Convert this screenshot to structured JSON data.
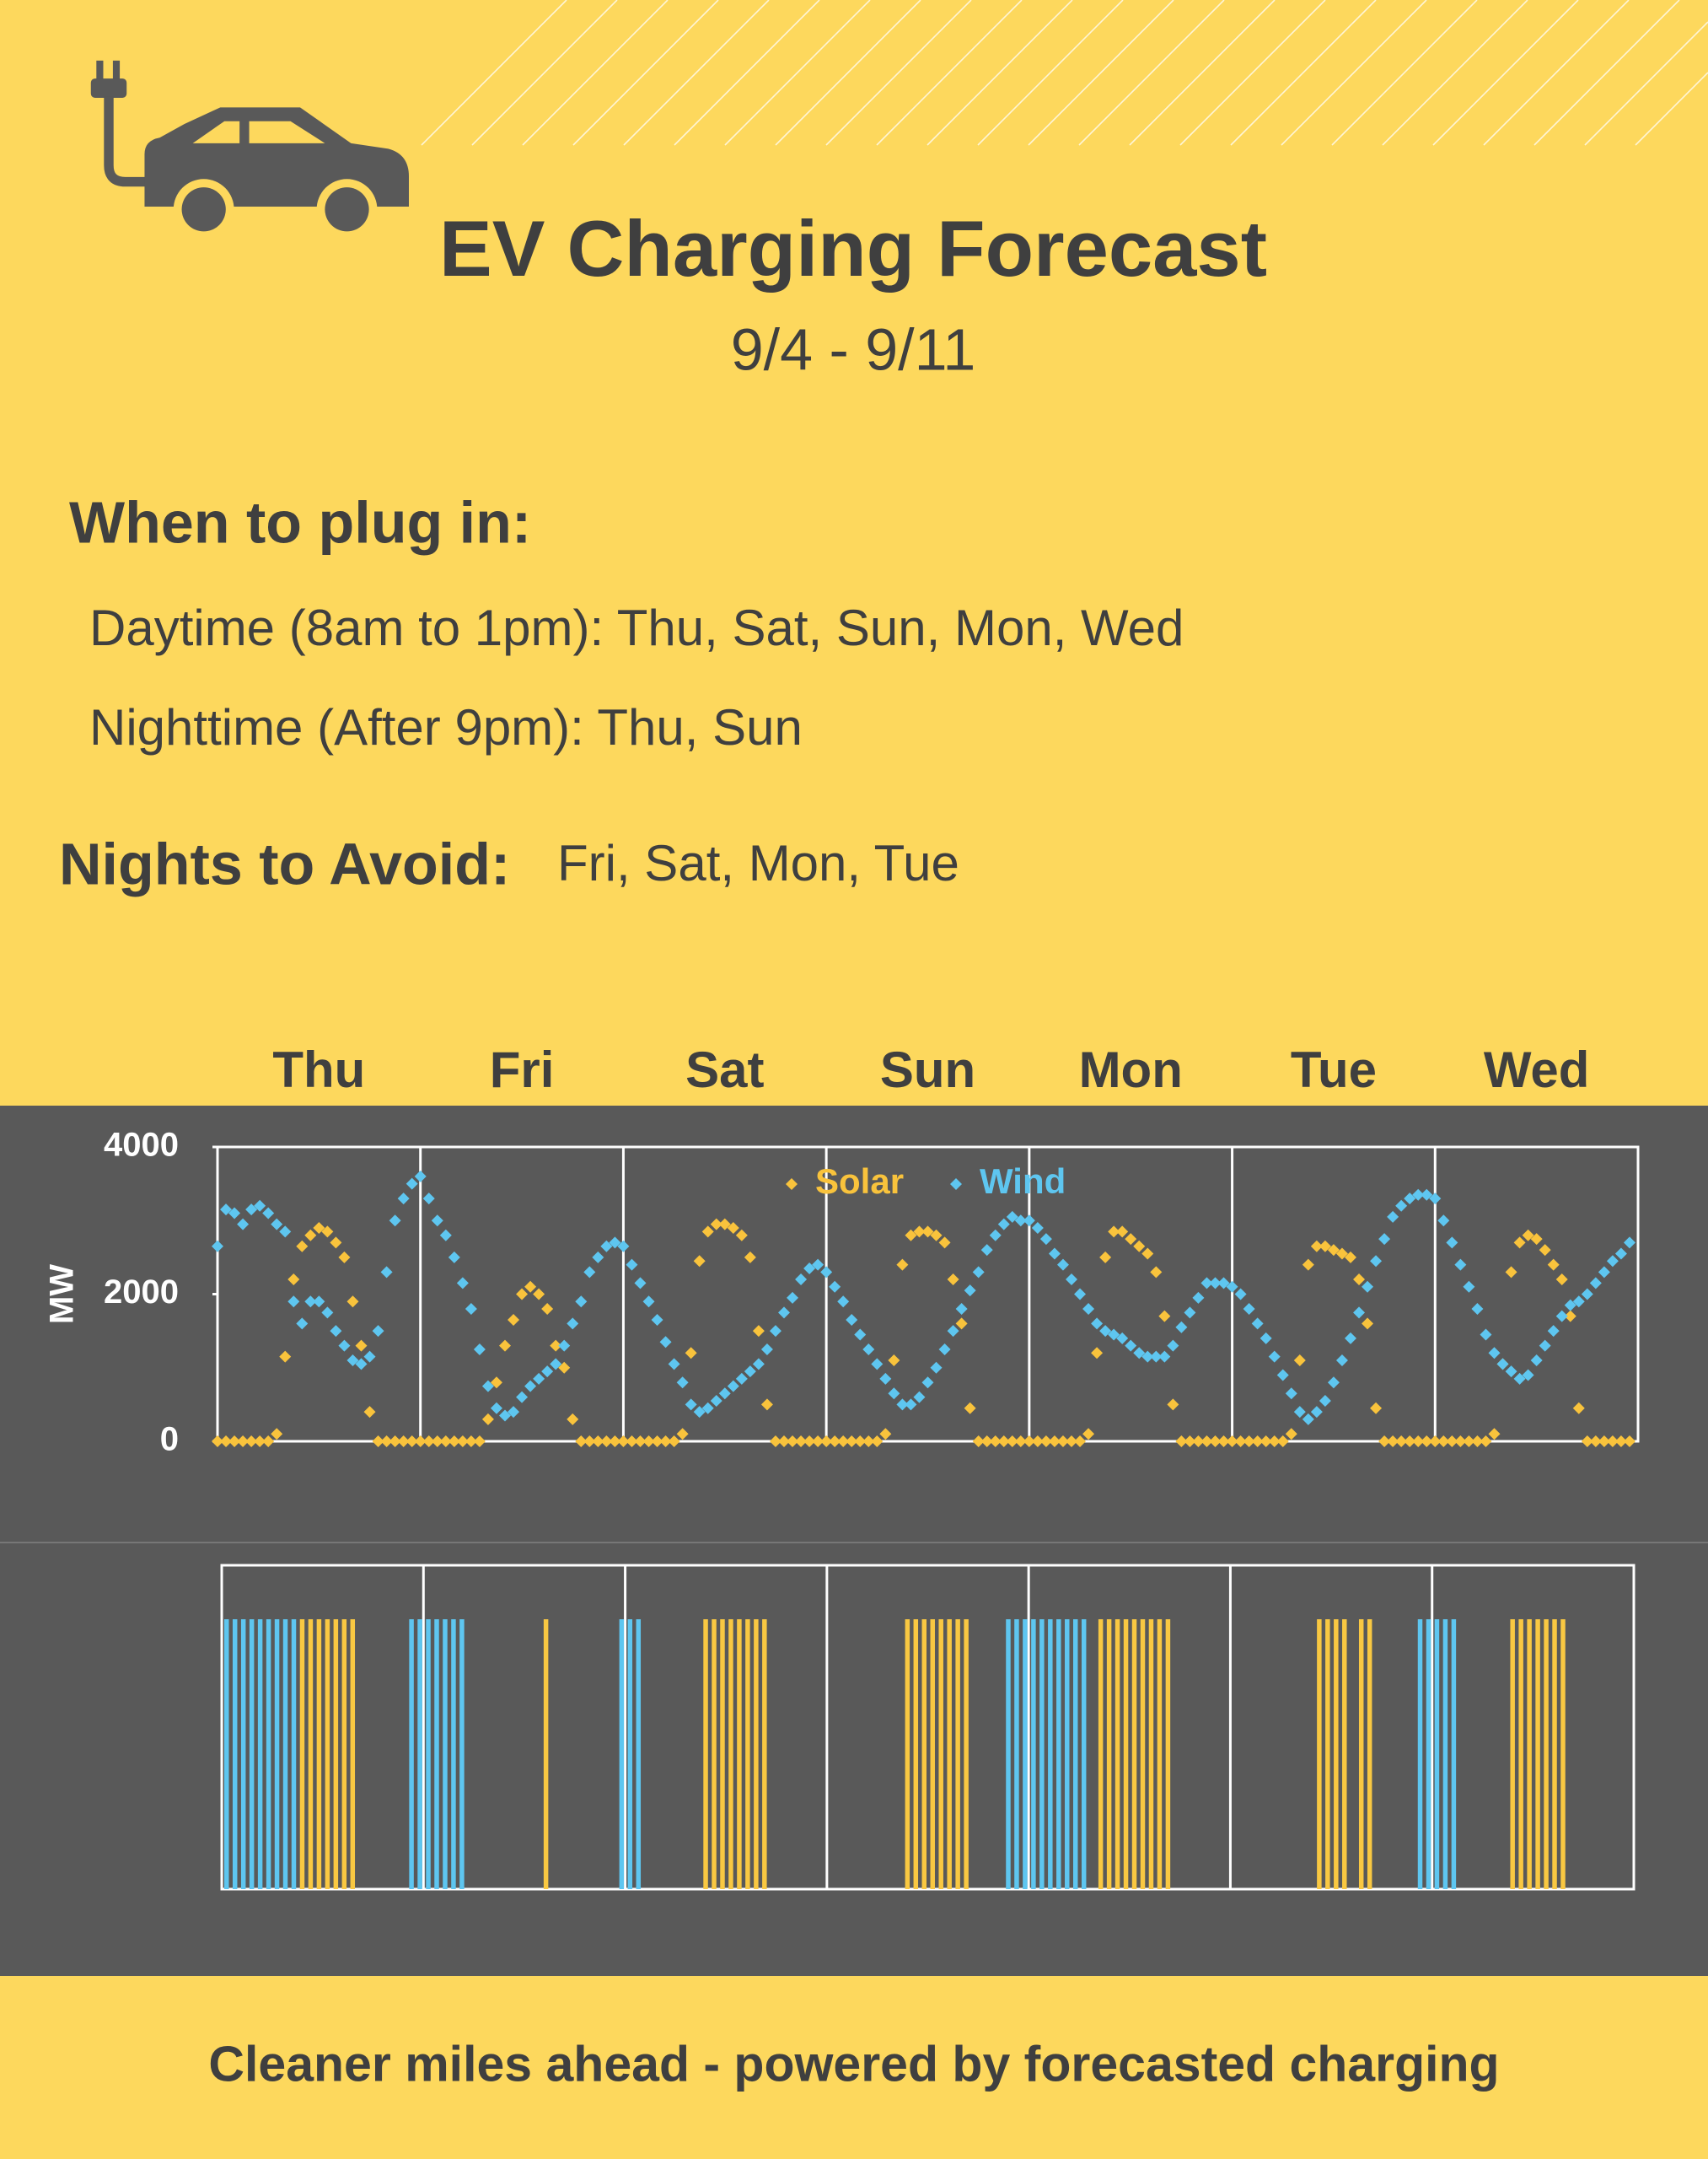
{
  "header": {
    "title": "EV Charging Forecast",
    "date_range": "9/4 - 9/11"
  },
  "plug_in": {
    "heading": "When to plug in:",
    "daytime": "Daytime (8am to 1pm): Thu, Sat, Sun, Mon, Wed",
    "nighttime": "Nighttime  (After 9pm): Thu, Sun"
  },
  "avoid": {
    "heading": "Nights to Avoid:",
    "days": "Fri, Sat, Mon, Tue"
  },
  "chart_data": [
    {
      "type": "scatter",
      "categories": [
        "Thu",
        "Fri",
        "Sat",
        "Sun",
        "Mon",
        "Tue",
        "Wed"
      ],
      "y_label": "MW",
      "ylim": [
        0,
        4000
      ],
      "yticks": [
        0,
        2000,
        4000
      ],
      "grid": false,
      "legend": "top",
      "series": [
        {
          "name": "Solar",
          "color": "#f9c33c",
          "values": [
            [
              0,
              0,
              0,
              0,
              0,
              0,
              0,
              100,
              1150,
              2200,
              2650,
              2800,
              2900,
              2850,
              2700,
              2500,
              1900,
              1300,
              400,
              0,
              0,
              0,
              0,
              0
            ],
            [
              0,
              0,
              0,
              0,
              0,
              0,
              0,
              0,
              300,
              800,
              1300,
              1650,
              2000,
              2100,
              2000,
              1800,
              1300,
              1000,
              300,
              0,
              0,
              0,
              0,
              0
            ],
            [
              0,
              0,
              0,
              0,
              0,
              0,
              0,
              100,
              1200,
              2450,
              2850,
              2950,
              2950,
              2900,
              2800,
              2500,
              1500,
              500,
              0,
              0,
              0,
              0,
              0,
              0
            ],
            [
              0,
              0,
              0,
              0,
              0,
              0,
              0,
              100,
              1100,
              2400,
              2800,
              2850,
              2850,
              2800,
              2700,
              2200,
              1600,
              450,
              0,
              0,
              0,
              0,
              0,
              0
            ],
            [
              0,
              0,
              0,
              0,
              0,
              0,
              0,
              100,
              1200,
              2500,
              2850,
              2850,
              2750,
              2650,
              2550,
              2300,
              1700,
              500,
              0,
              0,
              0,
              0,
              0,
              0
            ],
            [
              0,
              0,
              0,
              0,
              0,
              0,
              0,
              100,
              1100,
              2400,
              2650,
              2650,
              2600,
              2550,
              2500,
              2200,
              1600,
              450,
              0,
              0,
              0,
              0,
              0,
              0
            ],
            [
              0,
              0,
              0,
              0,
              0,
              0,
              0,
              100,
              1050,
              2300,
              2700,
              2800,
              2750,
              2600,
              2400,
              2200,
              1700,
              450,
              0,
              0,
              0,
              0,
              0,
              0
            ]
          ]
        },
        {
          "name": "Wind",
          "color": "#5ec6f0",
          "values": [
            [
              2650,
              3150,
              3100,
              2950,
              3150,
              3200,
              3100,
              2950,
              2850,
              1900,
              1600,
              1900,
              1900,
              1750,
              1500,
              1300,
              1100,
              1050,
              1150,
              1500,
              2300,
              3000,
              3300,
              3500
            ],
            [
              3600,
              3300,
              3000,
              2800,
              2500,
              2150,
              1800,
              1250,
              750,
              450,
              350,
              400,
              600,
              750,
              850,
              950,
              1050,
              1300,
              1600,
              1900,
              2300,
              2500,
              2650,
              2700
            ],
            [
              2650,
              2400,
              2150,
              1900,
              1650,
              1350,
              1050,
              800,
              500,
              400,
              450,
              550,
              650,
              750,
              850,
              950,
              1050,
              1250,
              1500,
              1750,
              1950,
              2200,
              2350,
              2400
            ],
            [
              2300,
              2100,
              1900,
              1650,
              1450,
              1250,
              1050,
              850,
              650,
              500,
              500,
              600,
              800,
              1000,
              1250,
              1500,
              1800,
              2050,
              2300,
              2600,
              2800,
              2950,
              3050,
              3000
            ],
            [
              3000,
              2900,
              2750,
              2550,
              2400,
              2200,
              2000,
              1800,
              1600,
              1500,
              1450,
              1400,
              1300,
              1200,
              1150,
              1150,
              1150,
              1300,
              1550,
              1750,
              1950,
              2150,
              2150,
              2150
            ],
            [
              2100,
              2000,
              1800,
              1600,
              1400,
              1150,
              900,
              650,
              400,
              300,
              400,
              550,
              800,
              1100,
              1400,
              1750,
              2100,
              2450,
              2750,
              3050,
              3200,
              3300,
              3350,
              3350
            ],
            [
              3300,
              3000,
              2700,
              2400,
              2100,
              1800,
              1450,
              1200,
              1050,
              950,
              850,
              900,
              1100,
              1300,
              1500,
              1700,
              1850,
              1900,
              2000,
              2150,
              2300,
              2450,
              2550,
              2700
            ]
          ]
        }
      ]
    },
    {
      "type": "bar",
      "ylim": [
        0,
        1
      ],
      "series": [
        {
          "color": "#5ec6f0",
          "values": [
            [
              1,
              1,
              1,
              1,
              1,
              1,
              1,
              1,
              1,
              0,
              0,
              0,
              0,
              0,
              0,
              0,
              0,
              0,
              0,
              0,
              0,
              0,
              1,
              1
            ],
            [
              1,
              1,
              1,
              1,
              1,
              0,
              0,
              0,
              0,
              0,
              0,
              0,
              0,
              0,
              0,
              0,
              0,
              0,
              0,
              0,
              0,
              0,
              0,
              1
            ],
            [
              1,
              1,
              0,
              0,
              0,
              0,
              0,
              0,
              0,
              0,
              0,
              0,
              0,
              0,
              0,
              0,
              0,
              0,
              0,
              0,
              0,
              0,
              0,
              0
            ],
            [
              0,
              0,
              0,
              0,
              0,
              0,
              0,
              0,
              0,
              0,
              0,
              0,
              0,
              0,
              0,
              0,
              0,
              0,
              0,
              0,
              0,
              1,
              1,
              1
            ],
            [
              1,
              1,
              1,
              1,
              1,
              1,
              1,
              0,
              0,
              0,
              0,
              0,
              0,
              0,
              0,
              0,
              0,
              0,
              0,
              0,
              0,
              0,
              0,
              0
            ],
            [
              0,
              0,
              0,
              0,
              0,
              0,
              0,
              0,
              0,
              0,
              0,
              0,
              0,
              0,
              0,
              0,
              0,
              0,
              0,
              0,
              0,
              0,
              1,
              1
            ],
            [
              1,
              1,
              1,
              0,
              0,
              0,
              0,
              0,
              0,
              0,
              0,
              0,
              0,
              0,
              0,
              0,
              0,
              0,
              0,
              0,
              0,
              0,
              0,
              0
            ]
          ]
        },
        {
          "color": "#f9c842",
          "values": [
            [
              0,
              0,
              0,
              0,
              0,
              0,
              0,
              0,
              0,
              1,
              1,
              1,
              1,
              1,
              1,
              1,
              0,
              0,
              0,
              0,
              0,
              0,
              0,
              0
            ],
            [
              0,
              0,
              0,
              0,
              0,
              0,
              0,
              0,
              0,
              0,
              0,
              0,
              0,
              0,
              1,
              0,
              0,
              0,
              0,
              0,
              0,
              0,
              0,
              0
            ],
            [
              0,
              0,
              0,
              0,
              0,
              0,
              0,
              0,
              0,
              1,
              1,
              1,
              1,
              1,
              1,
              1,
              1,
              0,
              0,
              0,
              0,
              0,
              0,
              0
            ],
            [
              0,
              0,
              0,
              0,
              0,
              0,
              0,
              0,
              0,
              1,
              1,
              1,
              1,
              1,
              1,
              1,
              1,
              0,
              0,
              0,
              0,
              0,
              0,
              0
            ],
            [
              0,
              0,
              0,
              0,
              0,
              0,
              0,
              0,
              1,
              1,
              1,
              1,
              1,
              1,
              1,
              1,
              1,
              0,
              0,
              0,
              0,
              0,
              0,
              0
            ],
            [
              0,
              0,
              0,
              0,
              0,
              0,
              0,
              0,
              0,
              0,
              1,
              1,
              1,
              1,
              0,
              1,
              1,
              0,
              0,
              0,
              0,
              0,
              0,
              0
            ],
            [
              0,
              0,
              0,
              0,
              0,
              0,
              0,
              0,
              0,
              1,
              1,
              1,
              1,
              1,
              1,
              1,
              0,
              0,
              0,
              0,
              0,
              0,
              0,
              0
            ]
          ]
        }
      ]
    }
  ],
  "footer": "Cleaner miles ahead - powered by forecasted charging"
}
